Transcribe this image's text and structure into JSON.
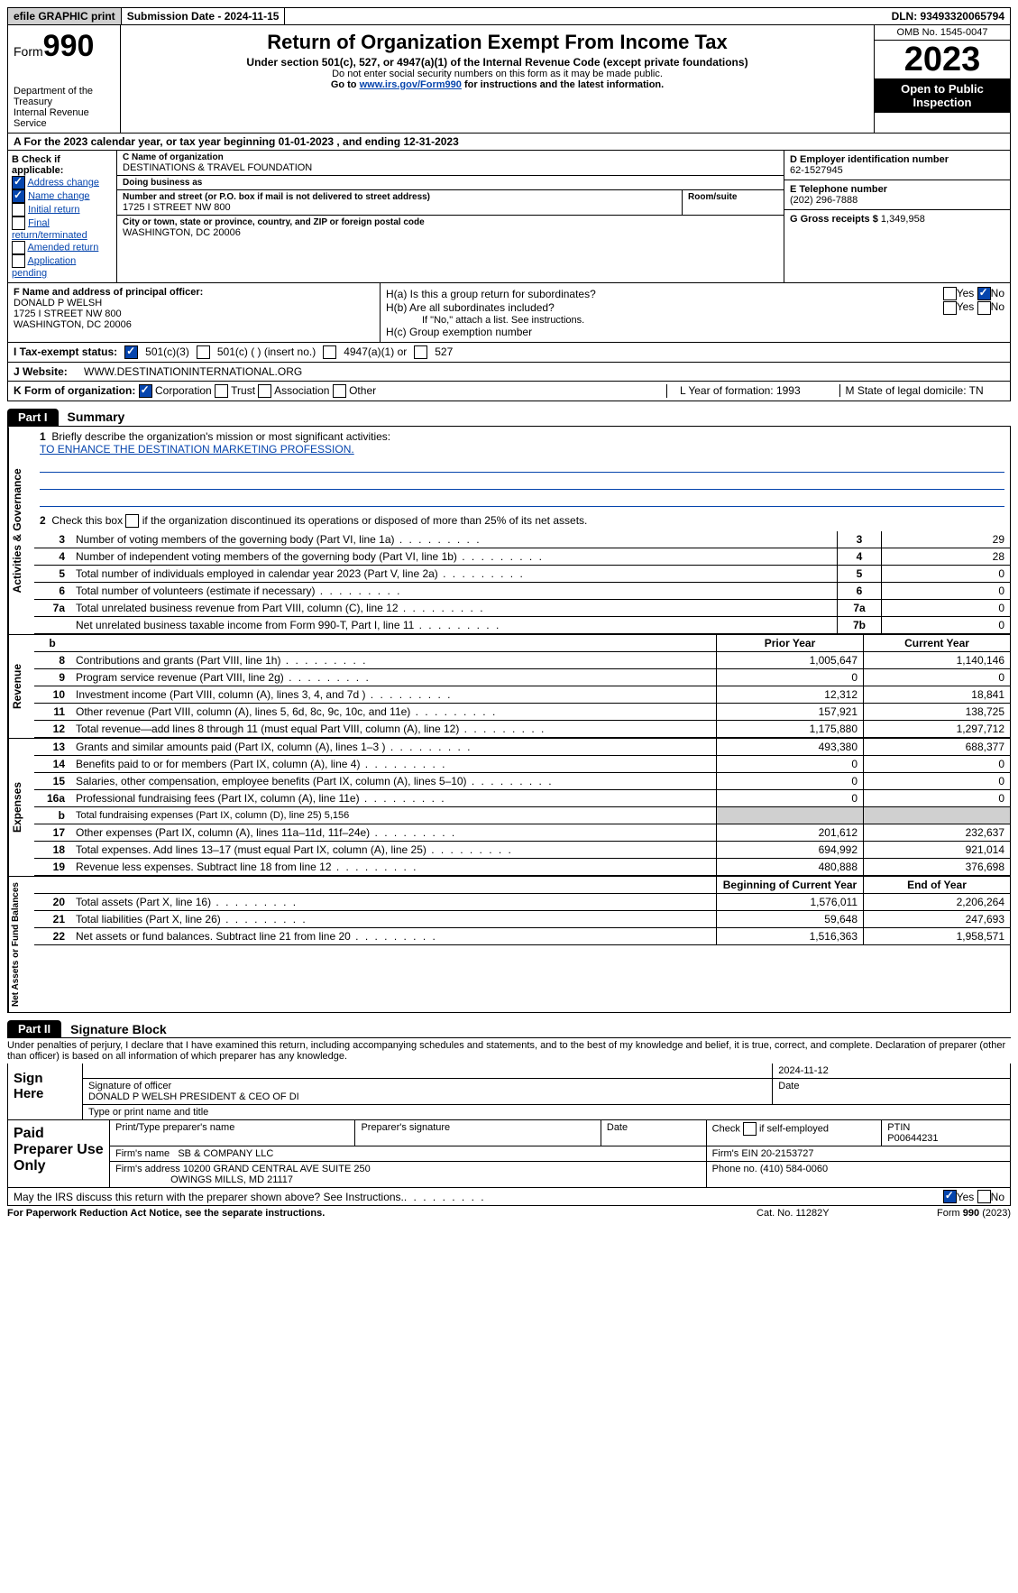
{
  "topbar": {
    "efile": "efile GRAPHIC print",
    "submission_label": "Submission Date - 2024-11-15",
    "dln_label": "DLN: 93493320065794"
  },
  "header": {
    "form_label": "Form",
    "form_num": "990",
    "dept": "Department of the Treasury\nInternal Revenue Service",
    "title": "Return of Organization Exempt From Income Tax",
    "sub1": "Under section 501(c), 527, or 4947(a)(1) of the Internal Revenue Code (except private foundations)",
    "sub2": "Do not enter social security numbers on this form as it may be made public.",
    "sub3_pre": "Go to ",
    "sub3_link": "www.irs.gov/Form990",
    "sub3_post": " for instructions and the latest information.",
    "omb": "OMB No. 1545-0047",
    "year": "2023",
    "inspect": "Open to Public Inspection"
  },
  "rowA": "A  For the 2023 calendar year, or tax year beginning 01-01-2023    , and ending 12-31-2023",
  "boxB": {
    "title": "B Check if applicable:",
    "items": [
      {
        "label": "Address change",
        "checked": true
      },
      {
        "label": "Name change",
        "checked": true
      },
      {
        "label": "Initial return",
        "checked": false
      },
      {
        "label": "Final return/terminated",
        "checked": false
      },
      {
        "label": "Amended return",
        "checked": false
      },
      {
        "label": "Application pending",
        "checked": false
      }
    ]
  },
  "boxC": {
    "name_lbl": "C Name of organization",
    "name": "DESTINATIONS & TRAVEL FOUNDATION",
    "dba_lbl": "Doing business as",
    "dba": "",
    "addr_lbl": "Number and street (or P.O. box if mail is not delivered to street address)",
    "addr": "1725 I STREET NW 800",
    "room_lbl": "Room/suite",
    "city_lbl": "City or town, state or province, country, and ZIP or foreign postal code",
    "city": "WASHINGTON, DC  20006"
  },
  "boxD": {
    "lbl": "D Employer identification number",
    "val": "62-1527945"
  },
  "boxE": {
    "lbl": "E Telephone number",
    "val": "(202) 296-7888"
  },
  "boxG": {
    "lbl": "G Gross receipts $ ",
    "val": "1,349,958"
  },
  "boxF": {
    "lbl": "F  Name and address of principal officer:",
    "name": "DONALD P WELSH",
    "addr1": "1725 I STREET NW 800",
    "addr2": "WASHINGTON, DC  20006"
  },
  "boxH": {
    "ha": "H(a)  Is this a group return for subordinates?",
    "hb": "H(b)  Are all subordinates included?",
    "hb_note": "If \"No,\" attach a list. See instructions.",
    "hc": "H(c)  Group exemption number",
    "yes": "Yes",
    "no": "No"
  },
  "taxStatus": {
    "lbl": "I    Tax-exempt status:",
    "o1": "501(c)(3)",
    "o2": "501(c) (  ) (insert no.)",
    "o3": "4947(a)(1) or",
    "o4": "527"
  },
  "website": {
    "lbl": "J   Website:",
    "val": "WWW.DESTINATIONINTERNATIONAL.ORG"
  },
  "korg": {
    "lbl": "K Form of organization:",
    "opts": [
      "Corporation",
      "Trust",
      "Association",
      "Other"
    ],
    "checked": 0,
    "L": "L Year of formation: 1993",
    "M": "M State of legal domicile: TN"
  },
  "part1": {
    "tab": "Part I",
    "title": "Summary"
  },
  "governance": {
    "side": "Activities & Governance",
    "q1": "Briefly describe the organization's mission or most significant activities:",
    "mission": "TO ENHANCE THE DESTINATION MARKETING PROFESSION.",
    "q2": "Check this box      if the organization discontinued its operations or disposed of more than 25% of its net assets.",
    "rows": [
      {
        "n": "3",
        "desc": "Number of voting members of the governing body (Part VI, line 1a)",
        "line": "3",
        "val": "29"
      },
      {
        "n": "4",
        "desc": "Number of independent voting members of the governing body (Part VI, line 1b)",
        "line": "4",
        "val": "28"
      },
      {
        "n": "5",
        "desc": "Total number of individuals employed in calendar year 2023 (Part V, line 2a)",
        "line": "5",
        "val": "0"
      },
      {
        "n": "6",
        "desc": "Total number of volunteers (estimate if necessary)",
        "line": "6",
        "val": "0"
      },
      {
        "n": "7a",
        "desc": "Total unrelated business revenue from Part VIII, column (C), line 12",
        "line": "7a",
        "val": "0"
      },
      {
        "n": "",
        "desc": "Net unrelated business taxable income from Form 990-T, Part I, line 11",
        "line": "7b",
        "val": "0"
      }
    ]
  },
  "revenue": {
    "side": "Revenue",
    "hdr_b": "b",
    "hdr_prior": "Prior Year",
    "hdr_cur": "Current Year",
    "rows": [
      {
        "n": "8",
        "desc": "Contributions and grants (Part VIII, line 1h)",
        "p": "1,005,647",
        "c": "1,140,146"
      },
      {
        "n": "9",
        "desc": "Program service revenue (Part VIII, line 2g)",
        "p": "0",
        "c": "0"
      },
      {
        "n": "10",
        "desc": "Investment income (Part VIII, column (A), lines 3, 4, and 7d )",
        "p": "12,312",
        "c": "18,841"
      },
      {
        "n": "11",
        "desc": "Other revenue (Part VIII, column (A), lines 5, 6d, 8c, 9c, 10c, and 11e)",
        "p": "157,921",
        "c": "138,725"
      },
      {
        "n": "12",
        "desc": "Total revenue—add lines 8 through 11 (must equal Part VIII, column (A), line 12)",
        "p": "1,175,880",
        "c": "1,297,712"
      }
    ]
  },
  "expenses": {
    "side": "Expenses",
    "rows": [
      {
        "n": "13",
        "desc": "Grants and similar amounts paid (Part IX, column (A), lines 1–3 )",
        "p": "493,380",
        "c": "688,377"
      },
      {
        "n": "14",
        "desc": "Benefits paid to or for members (Part IX, column (A), line 4)",
        "p": "0",
        "c": "0"
      },
      {
        "n": "15",
        "desc": "Salaries, other compensation, employee benefits (Part IX, column (A), lines 5–10)",
        "p": "0",
        "c": "0"
      },
      {
        "n": "16a",
        "desc": "Professional fundraising fees (Part IX, column (A), line 11e)",
        "p": "0",
        "c": "0"
      },
      {
        "n": "b",
        "desc": "Total fundraising expenses (Part IX, column (D), line 25) 5,156",
        "grey": true
      },
      {
        "n": "17",
        "desc": "Other expenses (Part IX, column (A), lines 11a–11d, 11f–24e)",
        "p": "201,612",
        "c": "232,637"
      },
      {
        "n": "18",
        "desc": "Total expenses. Add lines 13–17 (must equal Part IX, column (A), line 25)",
        "p": "694,992",
        "c": "921,014"
      },
      {
        "n": "19",
        "desc": "Revenue less expenses. Subtract line 18 from line 12",
        "p": "480,888",
        "c": "376,698"
      }
    ]
  },
  "netassets": {
    "side": "Net Assets or Fund Balances",
    "hdr_b": "Beginning of Current Year",
    "hdr_e": "End of Year",
    "rows": [
      {
        "n": "20",
        "desc": "Total assets (Part X, line 16)",
        "p": "1,576,011",
        "c": "2,206,264"
      },
      {
        "n": "21",
        "desc": "Total liabilities (Part X, line 26)",
        "p": "59,648",
        "c": "247,693"
      },
      {
        "n": "22",
        "desc": "Net assets or fund balances. Subtract line 21 from line 20",
        "p": "1,516,363",
        "c": "1,958,571"
      }
    ]
  },
  "part2": {
    "tab": "Part II",
    "title": "Signature Block"
  },
  "perjury": "Under penalties of perjury, I declare that I have examined this return, including accompanying schedules and statements, and to the best of my knowledge and belief, it is true, correct, and complete. Declaration of preparer (other than officer) is based on all information of which preparer has any knowledge.",
  "sign": {
    "here": "Sign Here",
    "date": "2024-11-12",
    "sig_lbl": "Signature of officer",
    "officer": "DONALD P WELSH  PRESIDENT & CEO OF DI",
    "type_lbl": "Type or print name and title",
    "date_lbl": "Date"
  },
  "paid": {
    "title": "Paid Preparer Use Only",
    "h1": "Print/Type preparer's name",
    "h2": "Preparer's signature",
    "h3": "Date",
    "h4_pre": "Check        if self-employed",
    "h5": "PTIN",
    "ptin": "P00644231",
    "firm_lbl": "Firm's name",
    "firm": "SB & COMPANY LLC",
    "ein_lbl": "Firm's EIN",
    "ein": "20-2153727",
    "addr_lbl": "Firm's address",
    "addr1": "10200 GRAND CENTRAL AVE SUITE 250",
    "addr2": "OWINGS MILLS, MD  21117",
    "phone_lbl": "Phone no.",
    "phone": "(410) 584-0060"
  },
  "footer": {
    "q": "May the IRS discuss this return with the preparer shown above? See Instructions.",
    "yes": "Yes",
    "no": "No"
  },
  "bottom": {
    "l": "For Paperwork Reduction Act Notice, see the separate instructions.",
    "m": "Cat. No. 11282Y",
    "r": "Form 990 (2023)"
  }
}
